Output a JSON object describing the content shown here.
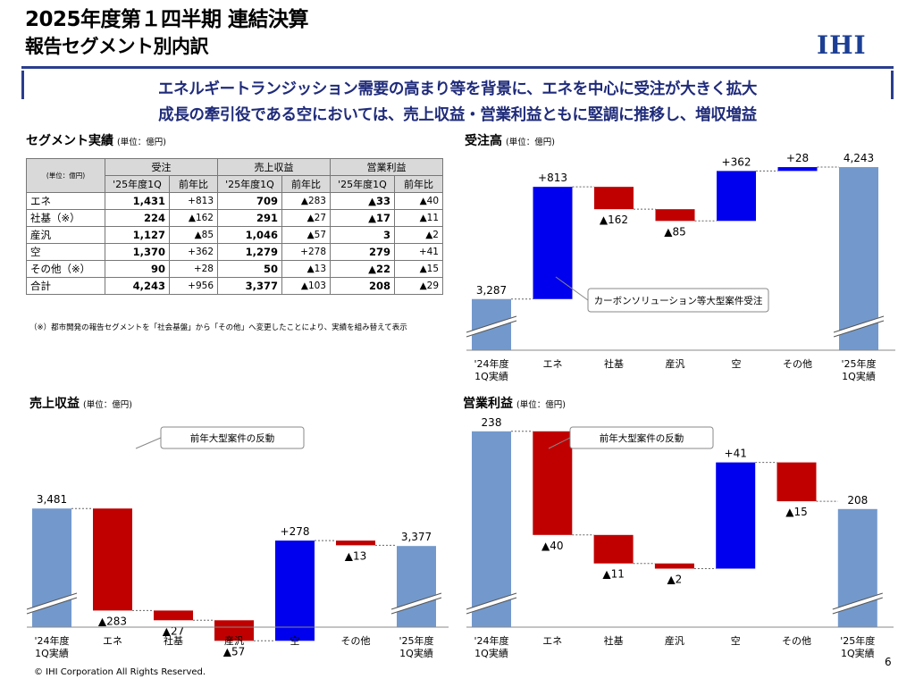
{
  "header": {
    "title_line1": "2025年度第１四半期 連結決算",
    "title_line2": "報告セグメント別内訳",
    "logo": "IHI",
    "headline1": "エネルギートランジッション需要の高まり等を背景に、エネを中心に受注が大きく拡大",
    "headline2": "成長の牽引役である空においては、売上収益・営業利益ともに堅調に推移し、増収増益"
  },
  "table_section": {
    "title": "セグメント実績",
    "unit": "(単位：億円)",
    "corner_unit": "(単位：億円)",
    "group_headers": [
      "受注",
      "売上収益",
      "営業利益"
    ],
    "sub_headers": [
      "'25年度1Q",
      "前年比",
      "'25年度1Q",
      "前年比",
      "'25年度1Q",
      "前年比"
    ],
    "rows": [
      {
        "name": "エネ",
        "cells": [
          "1,431",
          "+813",
          "709",
          "▲283",
          "▲33",
          "▲40"
        ]
      },
      {
        "name": "社基（※）",
        "cells": [
          "224",
          "▲162",
          "291",
          "▲27",
          "▲17",
          "▲11"
        ]
      },
      {
        "name": "産汎",
        "cells": [
          "1,127",
          "▲85",
          "1,046",
          "▲57",
          "3",
          "▲2"
        ]
      },
      {
        "name": "空",
        "cells": [
          "1,370",
          "+362",
          "1,279",
          "+278",
          "279",
          "+41"
        ]
      },
      {
        "name": "その他（※）",
        "cells": [
          "90",
          "+28",
          "50",
          "▲13",
          "▲22",
          "▲15"
        ]
      },
      {
        "name": "合計",
        "cells": [
          "4,243",
          "+956",
          "3,377",
          "▲103",
          "208",
          "▲29"
        ]
      }
    ],
    "note": "（※）都市開発の報告セグメントを「社会基盤」から「その他」へ変更したことにより、実績を組み替えて表示"
  },
  "colors": {
    "base": "#7399cc",
    "up": "#0000ee",
    "down": "#c00000",
    "navy": "#1f2b7a"
  },
  "chart_data": [
    {
      "type": "bar",
      "subtype": "waterfall",
      "title": "受注高",
      "unit": "(単位：億円)",
      "categories": [
        "'24年度\n1Q実績",
        "エネ",
        "社基",
        "産汎",
        "空",
        "その他",
        "'25年度\n1Q実績"
      ],
      "values": [
        3287,
        813,
        -162,
        -85,
        362,
        28,
        4243
      ],
      "labels": [
        "3,287",
        "+813",
        "▲162",
        "▲85",
        "+362",
        "+28",
        "4,243"
      ],
      "annotation": "カーボンソリューション等大型案件受注"
    },
    {
      "type": "bar",
      "subtype": "waterfall",
      "title": "売上収益",
      "unit": "(単位：億円)",
      "categories": [
        "'24年度\n1Q実績",
        "エネ",
        "社基",
        "産汎",
        "空",
        "その他",
        "'25年度\n1Q実績"
      ],
      "values": [
        3481,
        -283,
        -27,
        -57,
        278,
        -13,
        3377
      ],
      "labels": [
        "3,481",
        "▲283",
        "▲27",
        "▲57",
        "+278",
        "▲13",
        "3,377"
      ],
      "annotation": "前年大型案件の反動"
    },
    {
      "type": "bar",
      "subtype": "waterfall",
      "title": "営業利益",
      "unit": "(単位：億円)",
      "categories": [
        "'24年度\n1Q実績",
        "エネ",
        "社基",
        "産汎",
        "空",
        "その他",
        "'25年度\n1Q実績"
      ],
      "values": [
        238,
        -40,
        -11,
        -2,
        41,
        -15,
        208
      ],
      "labels": [
        "238",
        "▲40",
        "▲11",
        "▲2",
        "+41",
        "▲15",
        "208"
      ],
      "annotation": "前年大型案件の反動"
    }
  ],
  "footer": {
    "copyright": "© IHI Corporation All Rights Reserved.",
    "page": "6"
  }
}
